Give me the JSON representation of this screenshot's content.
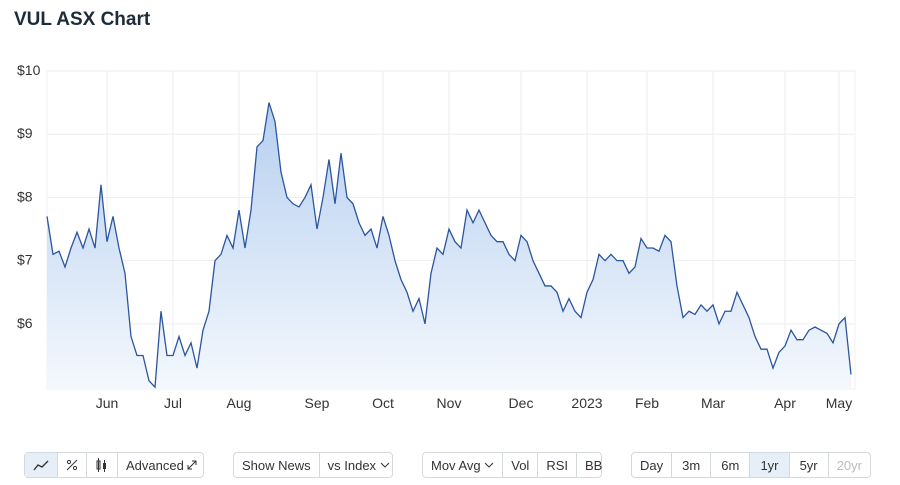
{
  "chart_data": {
    "type": "area",
    "title": "VUL ASX Chart",
    "color": "#2b559e",
    "fill": "#bcd3f2",
    "grid": true,
    "ylim": [
      4.97,
      10
    ],
    "yticks": [
      {
        "value": 6,
        "label": "$6"
      },
      {
        "value": 7,
        "label": "$7"
      },
      {
        "value": 8,
        "label": "$8"
      },
      {
        "value": 9,
        "label": "$9"
      },
      {
        "value": 10,
        "label": "$10"
      }
    ],
    "categories": [
      null,
      null,
      null,
      null,
      null,
      null,
      null,
      null,
      null,
      null,
      "Jun",
      null,
      null,
      null,
      null,
      null,
      null,
      null,
      null,
      null,
      null,
      "Jul",
      null,
      null,
      null,
      null,
      null,
      null,
      null,
      null,
      null,
      null,
      "Aug",
      null,
      null,
      null,
      null,
      null,
      null,
      null,
      null,
      null,
      null,
      null,
      null,
      "Sep",
      null,
      null,
      null,
      null,
      null,
      null,
      null,
      null,
      null,
      null,
      "Oct",
      null,
      null,
      null,
      null,
      null,
      null,
      null,
      null,
      null,
      null,
      "Nov",
      null,
      null,
      null,
      null,
      null,
      null,
      null,
      null,
      null,
      null,
      null,
      "Dec",
      null,
      null,
      null,
      null,
      null,
      null,
      null,
      null,
      null,
      null,
      "2023",
      null,
      null,
      null,
      null,
      null,
      null,
      null,
      null,
      null,
      "Feb",
      null,
      null,
      null,
      null,
      null,
      null,
      null,
      null,
      null,
      null,
      "Mar",
      null,
      null,
      null,
      null,
      null,
      null,
      null,
      null,
      null,
      null,
      null,
      "Apr",
      null,
      null,
      null,
      null,
      null,
      null,
      null,
      null,
      "May",
      null,
      null
    ],
    "values": [
      7.7,
      7.1,
      7.15,
      6.9,
      7.2,
      7.45,
      7.2,
      7.5,
      7.2,
      8.2,
      7.3,
      7.7,
      7.2,
      6.8,
      5.8,
      5.5,
      5.5,
      5.1,
      5.0,
      6.2,
      5.5,
      5.5,
      5.8,
      5.5,
      5.7,
      5.3,
      5.9,
      6.2,
      7.0,
      7.1,
      7.4,
      7.2,
      7.8,
      7.2,
      7.8,
      8.8,
      8.9,
      9.5,
      9.2,
      8.4,
      8.0,
      7.9,
      7.85,
      8.0,
      8.2,
      7.5,
      8.0,
      8.6,
      7.9,
      8.7,
      8.0,
      7.9,
      7.6,
      7.4,
      7.5,
      7.2,
      7.7,
      7.4,
      7.0,
      6.7,
      6.5,
      6.2,
      6.4,
      6.0,
      6.8,
      7.2,
      7.1,
      7.5,
      7.3,
      7.2,
      7.8,
      7.6,
      7.8,
      7.6,
      7.4,
      7.3,
      7.3,
      7.1,
      7.0,
      7.4,
      7.3,
      7.0,
      6.8,
      6.6,
      6.6,
      6.5,
      6.2,
      6.4,
      6.2,
      6.1,
      6.5,
      6.7,
      7.1,
      7.0,
      7.1,
      7.0,
      7.0,
      6.8,
      6.9,
      7.35,
      7.2,
      7.2,
      7.15,
      7.4,
      7.3,
      6.6,
      6.1,
      6.2,
      6.15,
      6.3,
      6.2,
      6.3,
      6.0,
      6.2,
      6.2,
      6.5,
      6.3,
      6.1,
      5.8,
      5.6,
      5.6,
      5.3,
      5.55,
      5.65,
      5.9,
      5.75,
      5.75,
      5.9,
      5.95,
      5.9,
      5.85,
      5.7,
      6.0,
      6.1,
      5.2
    ]
  },
  "toolbar": {
    "advanced": "Advanced",
    "show_news": "Show News",
    "vs_index": "vs Index",
    "mov_avg": "Mov Avg",
    "vol": "Vol",
    "rsi": "RSI",
    "bb": "BB",
    "ranges": [
      "Day",
      "3m",
      "6m",
      "1yr",
      "5yr",
      "20yr"
    ],
    "active_range": "1yr",
    "disabled_range": "20yr"
  }
}
